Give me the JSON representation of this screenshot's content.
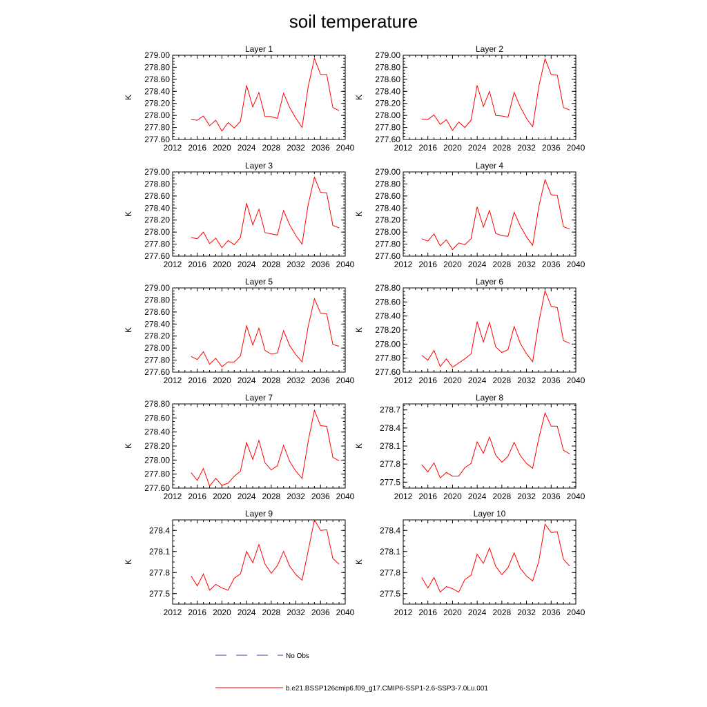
{
  "title": "soil temperature",
  "legend": {
    "entries": [
      {
        "label": "No Obs",
        "color": "#3c3ca0",
        "style": "dashed"
      },
      {
        "label": "b.e21.BSSP126cmip6.f09_g17.CMIP6-SSP1-2.6-SSP3-7.0Lu.001",
        "color": "#ff0000",
        "style": "solid"
      }
    ]
  },
  "chart_data": [
    {
      "type": "line",
      "title": "Layer 1",
      "ylabel": "K",
      "xlim": [
        2012,
        2040
      ],
      "xticks": [
        2012,
        2016,
        2020,
        2024,
        2028,
        2032,
        2036,
        2040
      ],
      "ylim": [
        277.6,
        279.0
      ],
      "yticks": [
        "277.60",
        "277.80",
        "278.00",
        "278.20",
        "278.40",
        "278.60",
        "278.80",
        "279.00"
      ],
      "series": [
        {
          "color": "#ff0000",
          "x": [
            2015,
            2016,
            2017,
            2018,
            2019,
            2020,
            2021,
            2022,
            2023,
            2024,
            2025,
            2026,
            2027,
            2028,
            2029,
            2030,
            2031,
            2032,
            2033,
            2034,
            2035,
            2036,
            2037,
            2038,
            2039
          ],
          "values": [
            277.93,
            277.92,
            277.99,
            277.83,
            277.92,
            277.74,
            277.88,
            277.79,
            277.9,
            278.5,
            278.14,
            278.38,
            277.98,
            277.98,
            277.95,
            278.37,
            278.13,
            277.95,
            277.8,
            278.48,
            278.95,
            278.68,
            278.68,
            278.13,
            278.08
          ]
        }
      ]
    },
    {
      "type": "line",
      "title": "Layer 2",
      "ylabel": "K",
      "xlim": [
        2012,
        2040
      ],
      "xticks": [
        2012,
        2016,
        2020,
        2024,
        2028,
        2032,
        2036,
        2040
      ],
      "ylim": [
        277.6,
        279.0
      ],
      "yticks": [
        "277.60",
        "277.80",
        "278.00",
        "278.20",
        "278.40",
        "278.60",
        "278.80",
        "279.00"
      ],
      "series": [
        {
          "color": "#ff0000",
          "x": [
            2015,
            2016,
            2017,
            2018,
            2019,
            2020,
            2021,
            2022,
            2023,
            2024,
            2025,
            2026,
            2027,
            2028,
            2029,
            2030,
            2031,
            2032,
            2033,
            2034,
            2035,
            2036,
            2037,
            2038,
            2039
          ],
          "values": [
            277.94,
            277.93,
            278.01,
            277.85,
            277.93,
            277.75,
            277.89,
            277.8,
            277.92,
            278.5,
            278.15,
            278.4,
            278.0,
            277.99,
            277.97,
            278.38,
            278.14,
            277.95,
            277.81,
            278.48,
            278.94,
            278.68,
            278.67,
            278.13,
            278.09
          ]
        }
      ]
    },
    {
      "type": "line",
      "title": "Layer 3",
      "ylabel": "K",
      "xlim": [
        2012,
        2040
      ],
      "xticks": [
        2012,
        2016,
        2020,
        2024,
        2028,
        2032,
        2036,
        2040
      ],
      "ylim": [
        277.6,
        279.0
      ],
      "yticks": [
        "277.60",
        "277.80",
        "278.00",
        "278.20",
        "278.40",
        "278.60",
        "278.80",
        "279.00"
      ],
      "series": [
        {
          "color": "#ff0000",
          "x": [
            2015,
            2016,
            2017,
            2018,
            2019,
            2020,
            2021,
            2022,
            2023,
            2024,
            2025,
            2026,
            2027,
            2028,
            2029,
            2030,
            2031,
            2032,
            2033,
            2034,
            2035,
            2036,
            2037,
            2038,
            2039
          ],
          "values": [
            277.91,
            277.89,
            278.0,
            277.81,
            277.9,
            277.74,
            277.86,
            277.79,
            277.91,
            278.48,
            278.12,
            278.38,
            277.99,
            277.97,
            277.95,
            278.36,
            278.12,
            277.94,
            277.8,
            278.46,
            278.91,
            278.66,
            278.65,
            278.11,
            278.07
          ]
        }
      ]
    },
    {
      "type": "line",
      "title": "Layer 4",
      "ylabel": "K",
      "xlim": [
        2012,
        2040
      ],
      "xticks": [
        2012,
        2016,
        2020,
        2024,
        2028,
        2032,
        2036,
        2040
      ],
      "ylim": [
        277.6,
        279.0
      ],
      "yticks": [
        "277.60",
        "277.80",
        "278.00",
        "278.20",
        "278.40",
        "278.60",
        "278.80",
        "279.00"
      ],
      "series": [
        {
          "color": "#ff0000",
          "x": [
            2015,
            2016,
            2017,
            2018,
            2019,
            2020,
            2021,
            2022,
            2023,
            2024,
            2025,
            2026,
            2027,
            2028,
            2029,
            2030,
            2031,
            2032,
            2033,
            2034,
            2035,
            2036,
            2037,
            2038,
            2039
          ],
          "values": [
            277.89,
            277.85,
            277.97,
            277.77,
            277.87,
            277.71,
            277.82,
            277.79,
            277.89,
            278.42,
            278.08,
            278.36,
            277.98,
            277.94,
            277.93,
            278.33,
            278.1,
            277.92,
            277.78,
            278.42,
            278.87,
            278.62,
            278.61,
            278.09,
            278.05
          ]
        }
      ]
    },
    {
      "type": "line",
      "title": "Layer 5",
      "ylabel": "K",
      "xlim": [
        2012,
        2040
      ],
      "xticks": [
        2012,
        2016,
        2020,
        2024,
        2028,
        2032,
        2036,
        2040
      ],
      "ylim": [
        277.6,
        279.0
      ],
      "yticks": [
        "277.60",
        "277.80",
        "278.00",
        "278.20",
        "278.40",
        "278.60",
        "278.80",
        "279.00"
      ],
      "series": [
        {
          "color": "#ff0000",
          "x": [
            2015,
            2016,
            2017,
            2018,
            2019,
            2020,
            2021,
            2022,
            2023,
            2024,
            2025,
            2026,
            2027,
            2028,
            2029,
            2030,
            2031,
            2032,
            2033,
            2034,
            2035,
            2036,
            2037,
            2038,
            2039
          ],
          "values": [
            277.86,
            277.81,
            277.94,
            277.73,
            277.83,
            277.69,
            277.77,
            277.77,
            277.87,
            278.37,
            278.05,
            278.33,
            277.96,
            277.9,
            277.92,
            278.29,
            278.04,
            277.89,
            277.77,
            278.36,
            278.82,
            278.58,
            278.57,
            278.06,
            278.03
          ]
        }
      ]
    },
    {
      "type": "line",
      "title": "Layer 6",
      "ylabel": "K",
      "xlim": [
        2012,
        2040
      ],
      "xticks": [
        2012,
        2016,
        2020,
        2024,
        2028,
        2032,
        2036,
        2040
      ],
      "ylim": [
        277.6,
        278.8
      ],
      "yticks": [
        "277.60",
        "277.80",
        "278.00",
        "278.20",
        "278.40",
        "278.60",
        "278.80"
      ],
      "series": [
        {
          "color": "#ff0000",
          "x": [
            2015,
            2016,
            2017,
            2018,
            2019,
            2020,
            2021,
            2022,
            2023,
            2024,
            2025,
            2026,
            2027,
            2028,
            2029,
            2030,
            2031,
            2032,
            2033,
            2034,
            2035,
            2036,
            2037,
            2038,
            2039
          ],
          "values": [
            277.84,
            277.77,
            277.91,
            277.68,
            277.79,
            277.67,
            277.73,
            277.79,
            277.86,
            278.32,
            278.03,
            278.31,
            277.96,
            277.88,
            277.92,
            278.25,
            278.01,
            277.86,
            277.75,
            278.31,
            278.76,
            278.54,
            278.52,
            278.05,
            278.01
          ]
        }
      ]
    },
    {
      "type": "line",
      "title": "Layer 7",
      "ylabel": "K",
      "xlim": [
        2012,
        2040
      ],
      "xticks": [
        2012,
        2016,
        2020,
        2024,
        2028,
        2032,
        2036,
        2040
      ],
      "ylim": [
        277.6,
        278.8
      ],
      "yticks": [
        "277.60",
        "277.80",
        "278.00",
        "278.20",
        "278.40",
        "278.60",
        "278.80"
      ],
      "series": [
        {
          "color": "#ff0000",
          "x": [
            2015,
            2016,
            2017,
            2018,
            2019,
            2020,
            2021,
            2022,
            2023,
            2024,
            2025,
            2026,
            2027,
            2028,
            2029,
            2030,
            2031,
            2032,
            2033,
            2034,
            2035,
            2036,
            2037,
            2038,
            2039
          ],
          "values": [
            277.82,
            277.71,
            277.88,
            277.63,
            277.74,
            277.64,
            277.67,
            277.77,
            277.84,
            278.25,
            278.01,
            278.28,
            277.96,
            277.86,
            277.92,
            278.21,
            277.98,
            277.84,
            277.74,
            278.27,
            278.71,
            278.49,
            278.48,
            278.04,
            277.99
          ]
        }
      ]
    },
    {
      "type": "line",
      "title": "Layer 8",
      "ylabel": "K",
      "xlim": [
        2012,
        2040
      ],
      "xticks": [
        2012,
        2016,
        2020,
        2024,
        2028,
        2032,
        2036,
        2040
      ],
      "ylim": [
        277.4,
        278.8
      ],
      "yticks": [
        "277.5",
        "277.8",
        "278.1",
        "278.4",
        "278.7"
      ],
      "series": [
        {
          "color": "#ff0000",
          "x": [
            2015,
            2016,
            2017,
            2018,
            2019,
            2020,
            2021,
            2022,
            2023,
            2024,
            2025,
            2026,
            2027,
            2028,
            2029,
            2030,
            2031,
            2032,
            2033,
            2034,
            2035,
            2036,
            2037,
            2038,
            2039
          ],
          "values": [
            277.79,
            277.67,
            277.82,
            277.57,
            277.66,
            277.6,
            277.6,
            277.74,
            277.81,
            278.17,
            277.98,
            278.25,
            277.95,
            277.83,
            277.93,
            278.16,
            277.94,
            277.81,
            277.73,
            278.23,
            278.65,
            278.43,
            278.43,
            278.03,
            277.97
          ]
        }
      ]
    },
    {
      "type": "line",
      "title": "Layer 9",
      "ylabel": "K",
      "xlim": [
        2012,
        2040
      ],
      "xticks": [
        2012,
        2016,
        2020,
        2024,
        2028,
        2032,
        2036,
        2040
      ],
      "ylim": [
        277.35,
        278.55
      ],
      "yticks": [
        "277.5",
        "277.8",
        "278.1",
        "278.4"
      ],
      "series": [
        {
          "color": "#ff0000",
          "x": [
            2015,
            2016,
            2017,
            2018,
            2019,
            2020,
            2021,
            2022,
            2023,
            2024,
            2025,
            2026,
            2027,
            2028,
            2029,
            2030,
            2031,
            2032,
            2033,
            2034,
            2035,
            2036,
            2037,
            2038,
            2039
          ],
          "values": [
            277.75,
            277.61,
            277.78,
            277.55,
            277.63,
            277.58,
            277.55,
            277.72,
            277.78,
            278.1,
            277.94,
            278.2,
            277.92,
            277.79,
            277.9,
            278.1,
            277.89,
            277.77,
            277.69,
            278.11,
            278.55,
            278.4,
            278.41,
            278.0,
            277.92
          ]
        }
      ]
    },
    {
      "type": "line",
      "title": "Layer 10",
      "ylabel": "K",
      "xlim": [
        2012,
        2040
      ],
      "xticks": [
        2012,
        2016,
        2020,
        2024,
        2028,
        2032,
        2036,
        2040
      ],
      "ylim": [
        277.35,
        278.55
      ],
      "yticks": [
        "277.5",
        "277.8",
        "278.1",
        "278.4"
      ],
      "series": [
        {
          "color": "#ff0000",
          "x": [
            2015,
            2016,
            2017,
            2018,
            2019,
            2020,
            2021,
            2022,
            2023,
            2024,
            2025,
            2026,
            2027,
            2028,
            2029,
            2030,
            2031,
            2032,
            2033,
            2034,
            2035,
            2036,
            2037,
            2038,
            2039
          ],
          "values": [
            277.73,
            277.58,
            277.73,
            277.52,
            277.6,
            277.57,
            277.52,
            277.7,
            277.76,
            278.06,
            277.93,
            278.15,
            277.89,
            277.77,
            277.87,
            278.08,
            277.86,
            277.75,
            277.68,
            277.96,
            278.49,
            278.37,
            278.38,
            277.99,
            277.89
          ]
        }
      ]
    }
  ]
}
